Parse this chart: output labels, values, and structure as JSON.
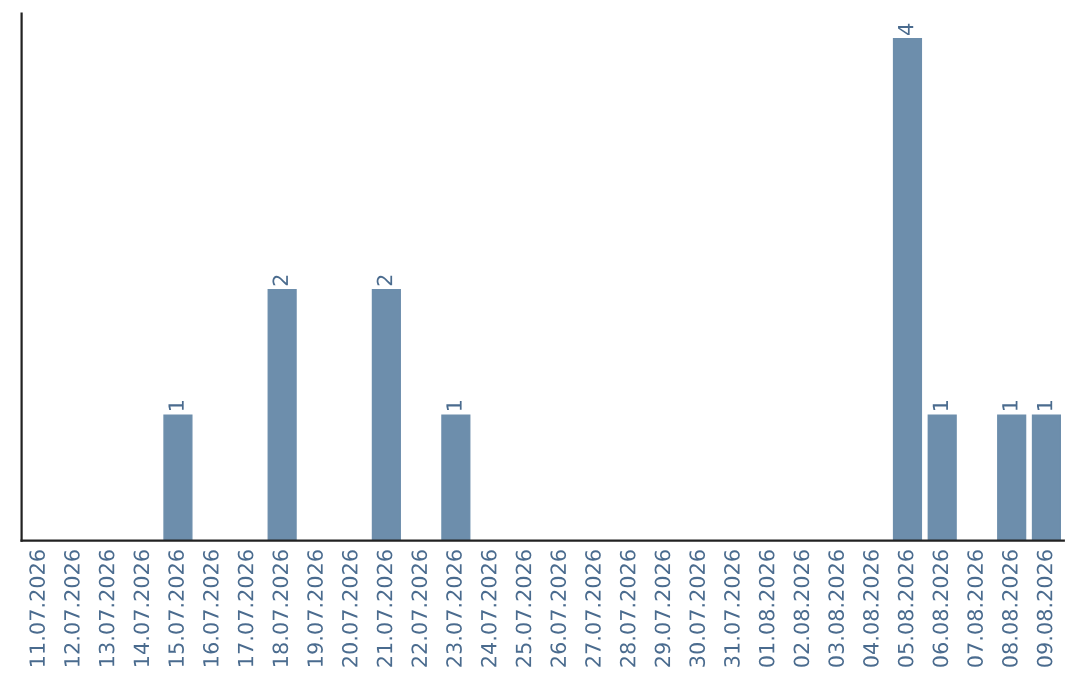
{
  "chart_data": {
    "type": "bar",
    "categories": [
      "11.07.2026",
      "12.07.2026",
      "13.07.2026",
      "14.07.2026",
      "15.07.2026",
      "16.07.2026",
      "17.07.2026",
      "18.07.2026",
      "19.07.2026",
      "20.07.2026",
      "21.07.2026",
      "22.07.2026",
      "23.07.2026",
      "24.07.2026",
      "25.07.2026",
      "26.07.2026",
      "27.07.2026",
      "28.07.2026",
      "29.07.2026",
      "30.07.2026",
      "31.07.2026",
      "01.08.2026",
      "02.08.2026",
      "03.08.2026",
      "04.08.2026",
      "05.08.2026",
      "06.08.2026",
      "07.08.2026",
      "08.08.2026",
      "09.08.2026"
    ],
    "values": [
      0,
      0,
      0,
      0,
      1,
      0,
      0,
      2,
      0,
      0,
      2,
      0,
      1,
      0,
      0,
      0,
      0,
      0,
      0,
      0,
      0,
      0,
      0,
      0,
      0,
      4,
      1,
      0,
      1,
      1
    ],
    "value_labels": [
      null,
      null,
      null,
      null,
      "1",
      null,
      null,
      "2",
      null,
      null,
      "2",
      null,
      "1",
      null,
      null,
      null,
      null,
      null,
      null,
      null,
      null,
      null,
      null,
      null,
      null,
      "4",
      "1",
      null,
      "1",
      "1"
    ],
    "color": "#6d8eac",
    "ylim": [
      0,
      4.2
    ],
    "tick_labels": "x",
    "grid": false,
    "legend": false
  }
}
